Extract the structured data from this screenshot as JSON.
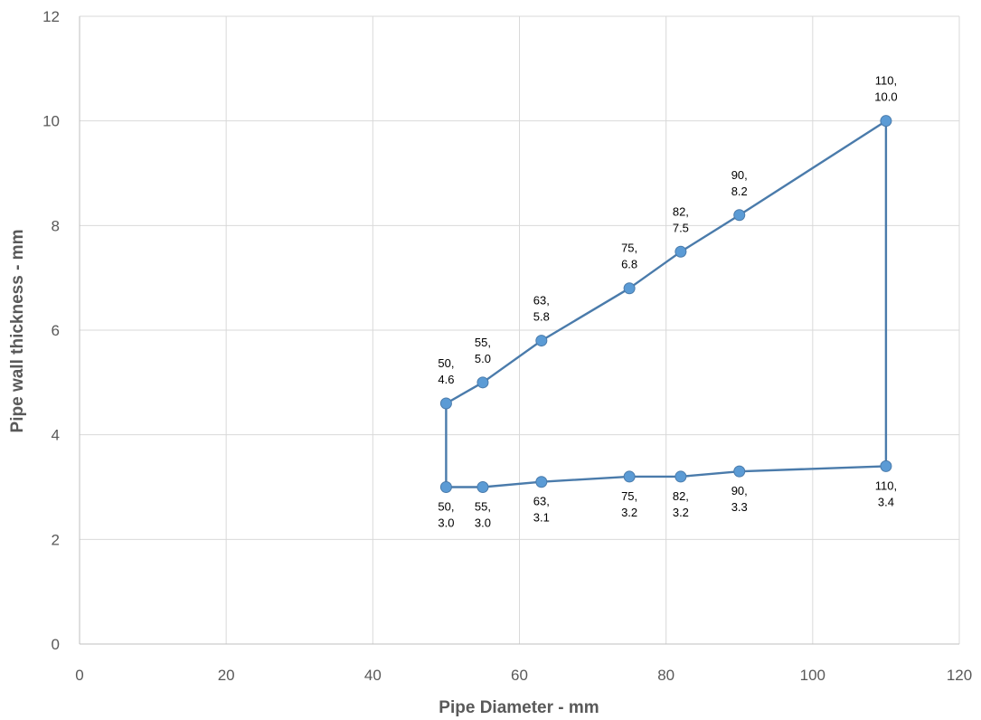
{
  "chart_data": {
    "type": "scatter",
    "title": "",
    "xlabel": "Pipe Diameter - mm",
    "ylabel": "Pipe wall thickness - mm",
    "xlim": [
      0,
      120
    ],
    "ylim": [
      0,
      12
    ],
    "x_ticks": [
      0,
      20,
      40,
      60,
      80,
      100,
      120
    ],
    "y_ticks": [
      0,
      2,
      4,
      6,
      8,
      10,
      12
    ],
    "grid": true,
    "legend": "none",
    "line_color": "#4a7bab",
    "marker_color": "#5b9bd5",
    "series": [
      {
        "points": [
          {
            "x": 50,
            "y": 3.0,
            "label": [
              "50,",
              "3.0"
            ],
            "label_pos": "below"
          },
          {
            "x": 55,
            "y": 3.0,
            "label": [
              "55,",
              "3.0"
            ],
            "label_pos": "below"
          },
          {
            "x": 63,
            "y": 3.1,
            "label": [
              "63,",
              "3.1"
            ],
            "label_pos": "below"
          },
          {
            "x": 75,
            "y": 3.2,
            "label": [
              "75,",
              "3.2"
            ],
            "label_pos": "below"
          },
          {
            "x": 82,
            "y": 3.2,
            "label": [
              "82,",
              "3.2"
            ],
            "label_pos": "below"
          },
          {
            "x": 90,
            "y": 3.3,
            "label": [
              "90,",
              "3.3"
            ],
            "label_pos": "below"
          },
          {
            "x": 110,
            "y": 3.4,
            "label": [
              "110,",
              "3.4"
            ],
            "label_pos": "below"
          },
          {
            "x": 110,
            "y": 10.0,
            "label": [
              "110,",
              "10.0"
            ],
            "label_pos": "above"
          },
          {
            "x": 90,
            "y": 8.2,
            "label": [
              "90,",
              "8.2"
            ],
            "label_pos": "above"
          },
          {
            "x": 82,
            "y": 7.5,
            "label": [
              "82,",
              "7.5"
            ],
            "label_pos": "above"
          },
          {
            "x": 75,
            "y": 6.8,
            "label": [
              "75,",
              "6.8"
            ],
            "label_pos": "above"
          },
          {
            "x": 63,
            "y": 5.8,
            "label": [
              "63,",
              "5.8"
            ],
            "label_pos": "above"
          },
          {
            "x": 55,
            "y": 5.0,
            "label": [
              "55,",
              "5.0"
            ],
            "label_pos": "above"
          },
          {
            "x": 50,
            "y": 4.6,
            "label": [
              "50,",
              "4.6"
            ],
            "label_pos": "above"
          },
          {
            "x": 50,
            "y": 3.0,
            "label": null,
            "label_pos": null
          }
        ]
      }
    ]
  }
}
